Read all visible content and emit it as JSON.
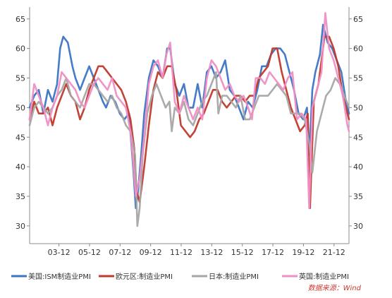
{
  "chart_data": {
    "type": "line",
    "x_tick_labels": [
      "03-12",
      "05-12",
      "07-12",
      "09-12",
      "11-12",
      "13-12",
      "15-12",
      "17-12",
      "19-12",
      "21-12"
    ],
    "x_tick_years": [
      2003.92,
      2005.92,
      2007.92,
      2009.92,
      2011.92,
      2013.92,
      2015.92,
      2017.92,
      2019.92,
      2021.92
    ],
    "xlim": [
      2002.0,
      2022.9
    ],
    "ylim": [
      27,
      67
    ],
    "y_ticks": [
      30,
      35,
      40,
      45,
      50,
      55,
      60,
      65
    ],
    "grid": false,
    "legend_position": "bottom",
    "source_note": "数据来源：Wind",
    "series": [
      {
        "name": "美国:ISM制造业PMI",
        "color": "#3b74c4",
        "x": [
          2002.0,
          2002.3,
          2002.6,
          2002.9,
          2003.2,
          2003.5,
          2003.8,
          2004.0,
          2004.2,
          2004.5,
          2004.8,
          2005.0,
          2005.3,
          2005.6,
          2005.9,
          2006.2,
          2006.5,
          2006.8,
          2007.0,
          2007.3,
          2007.6,
          2007.9,
          2008.2,
          2008.5,
          2008.8,
          2008.95,
          2009.1,
          2009.3,
          2009.5,
          2009.8,
          2010.1,
          2010.4,
          2010.7,
          2011.0,
          2011.2,
          2011.5,
          2011.8,
          2012.1,
          2012.4,
          2012.7,
          2013.0,
          2013.3,
          2013.6,
          2013.9,
          2014.2,
          2014.5,
          2014.8,
          2015.1,
          2015.4,
          2015.7,
          2016.0,
          2016.3,
          2016.6,
          2016.9,
          2017.2,
          2017.5,
          2017.8,
          2018.1,
          2018.4,
          2018.7,
          2019.0,
          2019.3,
          2019.6,
          2019.9,
          2020.15,
          2020.3,
          2020.5,
          2020.7,
          2021.0,
          2021.2,
          2021.5,
          2021.8,
          2022.1,
          2022.4,
          2022.7,
          2022.9
        ],
        "values": [
          50,
          52,
          53,
          49,
          53,
          51,
          54,
          60,
          62,
          61,
          57,
          55,
          53,
          55,
          57,
          55,
          53,
          51,
          50,
          52,
          51,
          49,
          48,
          49,
          39,
          33,
          36,
          42,
          49,
          55,
          58,
          57,
          55,
          60,
          60,
          54,
          52,
          54,
          50,
          50,
          54,
          50,
          56,
          57,
          55,
          56,
          58,
          53,
          52,
          50,
          48,
          51,
          50,
          53,
          57,
          57,
          59,
          60,
          60,
          59,
          56,
          53,
          49,
          48,
          50,
          42,
          53,
          56,
          59,
          64,
          61,
          60,
          58,
          56,
          51,
          49
        ]
      },
      {
        "name": "欧元区:制造业PMI",
        "color": "#c0392b",
        "x": [
          2002.0,
          2002.3,
          2002.6,
          2002.9,
          2003.2,
          2003.5,
          2003.8,
          2004.1,
          2004.4,
          2004.7,
          2005.0,
          2005.3,
          2005.6,
          2005.9,
          2006.2,
          2006.5,
          2006.8,
          2007.1,
          2007.4,
          2007.7,
          2008.0,
          2008.3,
          2008.6,
          2008.85,
          2009.0,
          2009.2,
          2009.5,
          2009.8,
          2010.1,
          2010.4,
          2010.7,
          2011.0,
          2011.3,
          2011.6,
          2011.9,
          2012.2,
          2012.5,
          2012.8,
          2013.1,
          2013.4,
          2013.7,
          2014.0,
          2014.3,
          2014.6,
          2014.9,
          2015.2,
          2015.5,
          2015.8,
          2016.1,
          2016.4,
          2016.7,
          2017.0,
          2017.3,
          2017.6,
          2017.9,
          2018.2,
          2018.5,
          2018.8,
          2019.1,
          2019.4,
          2019.7,
          2020.0,
          2020.2,
          2020.35,
          2020.6,
          2020.9,
          2021.1,
          2021.3,
          2021.6,
          2021.9,
          2022.2,
          2022.5,
          2022.8,
          2022.9
        ],
        "values": [
          48,
          51,
          49,
          49,
          50,
          47,
          50,
          52,
          54,
          52,
          51,
          48,
          50,
          53,
          55,
          57,
          57,
          56,
          55,
          54,
          53,
          51,
          48,
          43,
          36,
          34,
          40,
          47,
          53,
          56,
          55,
          57,
          57,
          53,
          47,
          46,
          45,
          46,
          48,
          49,
          51,
          53,
          53,
          51,
          50,
          51,
          52,
          52,
          51,
          52,
          52,
          55,
          56,
          57,
          60,
          60,
          56,
          53,
          50,
          48,
          46,
          47,
          49,
          33,
          51,
          54,
          58,
          62,
          62,
          60,
          57,
          52,
          49,
          48
        ]
      },
      {
        "name": "日本:制造业PMI",
        "color": "#a6a6a6",
        "x": [
          2002.0,
          2002.3,
          2002.6,
          2002.9,
          2003.2,
          2003.5,
          2003.8,
          2004.1,
          2004.4,
          2004.7,
          2005.0,
          2005.3,
          2005.6,
          2005.9,
          2006.2,
          2006.5,
          2006.8,
          2007.1,
          2007.4,
          2007.7,
          2008.0,
          2008.3,
          2008.6,
          2008.9,
          2009.05,
          2009.2,
          2009.4,
          2009.7,
          2010.0,
          2010.3,
          2010.6,
          2010.9,
          2011.15,
          2011.3,
          2011.5,
          2011.8,
          2012.1,
          2012.4,
          2012.7,
          2013.0,
          2013.3,
          2013.6,
          2013.9,
          2014.2,
          2014.35,
          2014.6,
          2014.9,
          2015.2,
          2015.5,
          2015.8,
          2016.1,
          2016.4,
          2016.7,
          2017.0,
          2017.3,
          2017.6,
          2017.9,
          2018.2,
          2018.5,
          2018.8,
          2019.1,
          2019.4,
          2019.7,
          2020.0,
          2020.3,
          2020.5,
          2020.8,
          2021.1,
          2021.4,
          2021.7,
          2022.0,
          2022.3,
          2022.6,
          2022.9
        ],
        "values": [
          47,
          50,
          51,
          50,
          49,
          50,
          52,
          53,
          55,
          52,
          51,
          50,
          52,
          54,
          54,
          53,
          52,
          51,
          52,
          50,
          49,
          47,
          46,
          42,
          30,
          33,
          42,
          49,
          52,
          54,
          52,
          50,
          51,
          46,
          50,
          49,
          51,
          48,
          47,
          49,
          51,
          52,
          54,
          56,
          49,
          52,
          52,
          51,
          50,
          52,
          48,
          48,
          50,
          52,
          52,
          52,
          53,
          54,
          53,
          52,
          49,
          49,
          49,
          48,
          44,
          39,
          46,
          49,
          52,
          53,
          55,
          54,
          52,
          50
        ]
      },
      {
        "name": "英国:制造业PMI",
        "color": "#ee8fc4",
        "x": [
          2002.0,
          2002.3,
          2002.6,
          2002.9,
          2003.2,
          2003.5,
          2003.8,
          2004.1,
          2004.4,
          2004.7,
          2005.0,
          2005.3,
          2005.6,
          2005.9,
          2006.2,
          2006.5,
          2006.8,
          2007.1,
          2007.4,
          2007.7,
          2008.0,
          2008.3,
          2008.6,
          2008.8,
          2008.95,
          2009.2,
          2009.5,
          2009.8,
          2010.1,
          2010.4,
          2010.7,
          2010.95,
          2011.2,
          2011.5,
          2011.8,
          2012.1,
          2012.4,
          2012.7,
          2013.0,
          2013.3,
          2013.6,
          2013.9,
          2014.2,
          2014.5,
          2014.8,
          2015.1,
          2015.4,
          2015.7,
          2016.0,
          2016.3,
          2016.55,
          2016.8,
          2017.1,
          2017.4,
          2017.7,
          2018.0,
          2018.3,
          2018.6,
          2018.9,
          2019.2,
          2019.5,
          2019.8,
          2020.1,
          2020.3,
          2020.5,
          2020.8,
          2021.1,
          2021.35,
          2021.6,
          2021.9,
          2022.2,
          2022.5,
          2022.8,
          2022.9
        ],
        "values": [
          48,
          54,
          52,
          50,
          47,
          50,
          52,
          56,
          55,
          54,
          53,
          51,
          50,
          52,
          54,
          55,
          54,
          53,
          55,
          52,
          51,
          50,
          46,
          40,
          35,
          38,
          45,
          54,
          57,
          58,
          55,
          59,
          61,
          51,
          49,
          52,
          50,
          48,
          50,
          48,
          55,
          58,
          57,
          55,
          53,
          54,
          52,
          51,
          52,
          50,
          48,
          55,
          55,
          54,
          56,
          55,
          54,
          53,
          55,
          56,
          48,
          49,
          48,
          33,
          50,
          53,
          56,
          66,
          60,
          58,
          55,
          52,
          47,
          46
        ]
      }
    ]
  }
}
